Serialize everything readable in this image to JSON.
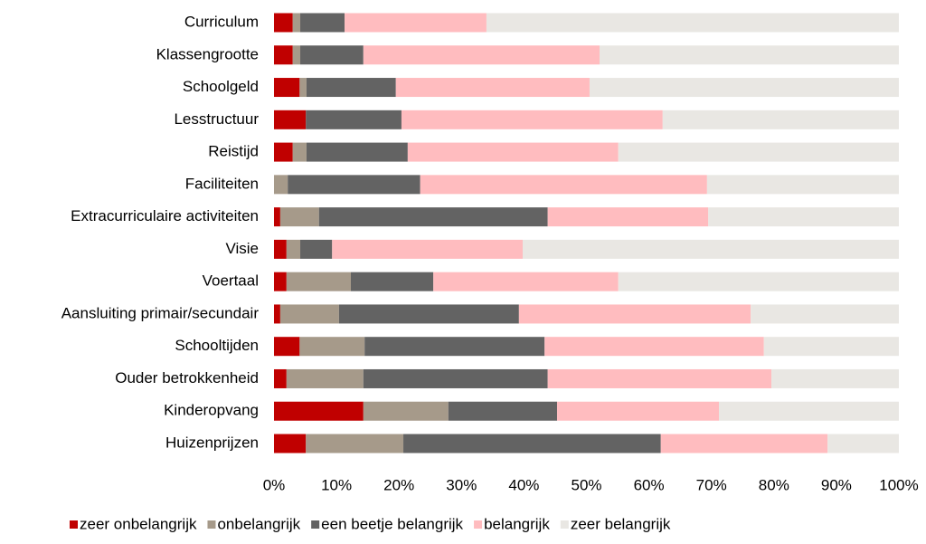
{
  "chart_data": {
    "type": "stacked_barh",
    "categories": [
      "Curriculum",
      "Klassengrootte",
      "Schoolgeld",
      "Lesstructuur",
      "Reistijd",
      "Faciliteiten",
      "Extracurriculaire activiteiten",
      "Visie",
      "Voertaal",
      "Aansluiting primair/secundair",
      "Schooltijden",
      "Ouder betrokkenheid",
      "Kinderopvang",
      "Huizenprijzen"
    ],
    "series": [
      {
        "name": "zeer onbelangrijk",
        "color": "#c00000",
        "values": [
          3.0,
          3.0,
          4.1,
          5.1,
          3.0,
          0,
          1.0,
          2.0,
          2.0,
          1.0,
          4.1,
          2.0,
          14.3,
          5.1
        ]
      },
      {
        "name": "onbelangrijk",
        "color": "#a69a8a",
        "values": [
          1.2,
          1.2,
          1.1,
          0,
          2.2,
          2.2,
          6.2,
          2.2,
          10.3,
          9.4,
          10.4,
          12.3,
          13.6,
          15.6
        ]
      },
      {
        "name": "een beetje belangrijk",
        "color": "#636363",
        "values": [
          7.1,
          10.1,
          14.3,
          15.3,
          16.2,
          21.2,
          36.6,
          5.1,
          13.2,
          28.8,
          28.8,
          29.5,
          17.4,
          41.2
        ]
      },
      {
        "name": "belangrijk",
        "color": "#ffbcbf",
        "values": [
          22.7,
          37.8,
          31.0,
          41.8,
          33.7,
          45.9,
          25.7,
          30.5,
          29.6,
          37.1,
          35.1,
          35.8,
          25.9,
          26.7
        ]
      },
      {
        "name": "zeer belangrijk",
        "color": "#e9e7e3",
        "values": [
          66.0,
          47.9,
          49.5,
          37.8,
          44.9,
          30.7,
          30.5,
          60.2,
          44.9,
          23.7,
          21.6,
          20.4,
          28.8,
          11.4
        ]
      }
    ],
    "xlim": [
      0,
      100
    ],
    "xticks": [
      {
        "value": 0,
        "label": "0%"
      },
      {
        "value": 10,
        "label": "10%"
      },
      {
        "value": 20,
        "label": "20%"
      },
      {
        "value": 30,
        "label": "30%"
      },
      {
        "value": 40,
        "label": "40%"
      },
      {
        "value": 50,
        "label": "50%"
      },
      {
        "value": 60,
        "label": "60%"
      },
      {
        "value": 70,
        "label": "70%"
      },
      {
        "value": 80,
        "label": "80%"
      },
      {
        "value": 90,
        "label": "90%"
      },
      {
        "value": 100,
        "label": "100%"
      }
    ],
    "grid": false,
    "legend": "bottom"
  }
}
